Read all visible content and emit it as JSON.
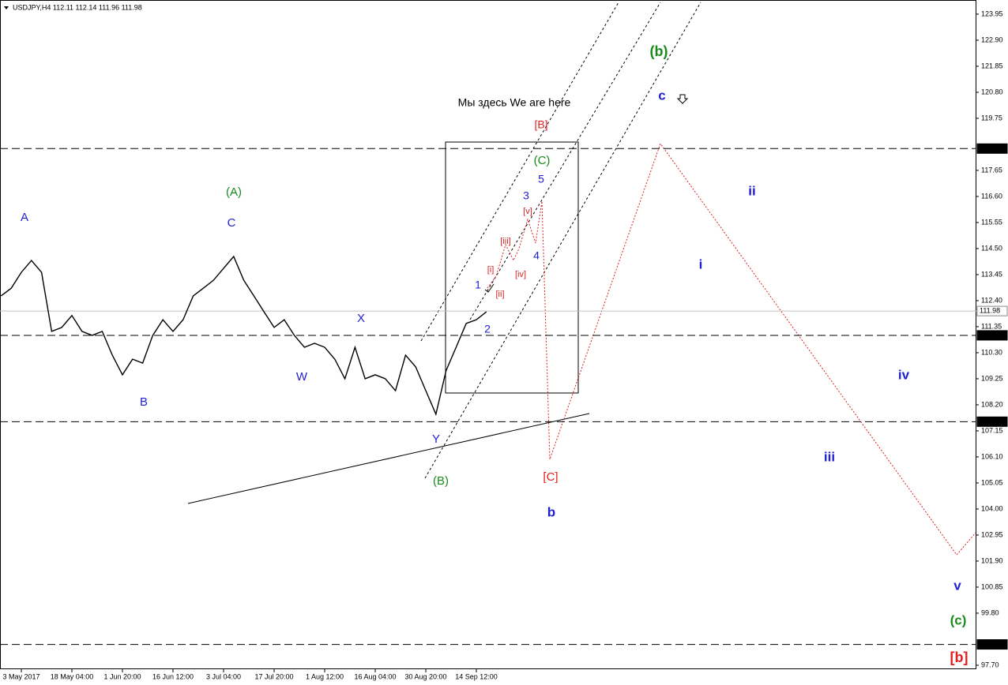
{
  "chart_data": {
    "type": "line",
    "title": "USDJPY,H4  112.11 112.14 111.96 111.98",
    "note": "Мы здесь We are here",
    "categories": [
      null,
      null,
      "3 May 2017",
      null,
      null,
      null,
      null,
      "18 May 04:00",
      null,
      null,
      null,
      null,
      "1 Jun 20:00",
      null,
      null,
      null,
      null,
      "16 Jun 12:00",
      null,
      null,
      null,
      null,
      "3 Jul 04:00",
      null,
      null,
      null,
      null,
      "17 Jul 20:00",
      null,
      null,
      null,
      null,
      "1 Aug 12:00",
      null,
      null,
      null,
      null,
      "16 Aug 04:00",
      null,
      null,
      null,
      null,
      "30 Aug 20:00",
      null,
      null,
      null,
      null,
      "14 Sep 12:00",
      null
    ],
    "series": [
      {
        "name": "USDJPY,H4",
        "color": "#000000",
        "values": [
          112.59,
          112.9,
          113.54,
          114.02,
          113.54,
          111.16,
          111.32,
          111.8,
          111.16,
          111.0,
          111.16,
          110.2,
          109.41,
          110.04,
          109.88,
          111.0,
          111.63,
          111.16,
          111.63,
          112.59,
          112.9,
          113.22,
          113.7,
          114.18,
          113.22,
          112.59,
          111.95,
          111.32,
          111.63,
          111.0,
          110.52,
          110.68,
          110.52,
          110.04,
          109.25,
          110.52,
          109.25,
          109.41,
          109.25,
          108.77,
          110.2,
          109.73,
          108.77,
          107.82,
          109.57,
          110.52,
          111.48,
          111.63,
          111.95
        ]
      }
    ],
    "ylim": [
      97.54,
      124.52
    ],
    "yticks": [
      123.95,
      {
        "value": 122.9,
        "label": "122.90"
      },
      121.85,
      {
        "value": 120.8,
        "label": "120.80"
      },
      119.75,
      117.65,
      {
        "value": 116.6,
        "label": "116.60"
      },
      115.55,
      {
        "value": 114.5,
        "label": "114.50"
      },
      113.45,
      {
        "value": 112.4,
        "label": "112.40"
      },
      111.35,
      {
        "value": 110.3,
        "label": "110.30"
      },
      109.25,
      {
        "value": 108.2,
        "label": "108.20"
      },
      107.15,
      {
        "value": 106.1,
        "label": "106.10"
      },
      105.05,
      {
        "value": 104.0,
        "label": "104.00"
      },
      102.95,
      {
        "value": 101.9,
        "label": "101.90"
      },
      100.85,
      {
        "value": 99.8,
        "label": "99.80"
      },
      {
        "value": 97.7,
        "label": "97.70"
      }
    ],
    "levels": [
      {
        "value": 118.53,
        "color": "#000000"
      },
      {
        "value": 111.98,
        "color": "#c0c0c0"
      },
      {
        "value": 111.0,
        "label": "111.00",
        "color": "#000000"
      },
      {
        "value": 107.52,
        "color": "#000000"
      },
      {
        "value": 98.54,
        "color": "#000000"
      }
    ],
    "annotations": [
      {
        "text": "A",
        "color": "#1f1fd0"
      },
      {
        "text": "B",
        "color": "#1f1fd0"
      },
      {
        "text": "C",
        "color": "#1f1fd0"
      },
      {
        "text": "(A)",
        "color": "#1a8a1a"
      },
      {
        "text": "X",
        "color": "#1f1fd0"
      },
      {
        "text": "W",
        "color": "#1f1fd0"
      },
      {
        "text": "Y",
        "color": "#1f1fd0"
      },
      {
        "text": "(B)",
        "color": "#1a8a1a"
      },
      {
        "text": "1",
        "color": "#1f1fd0"
      },
      {
        "text": "2",
        "color": "#1f1fd0"
      },
      {
        "text": "3",
        "color": "#1f1fd0"
      },
      {
        "text": "4",
        "color": "#1f1fd0"
      },
      {
        "text": "5",
        "color": "#1f1fd0"
      },
      {
        "text": "(C)",
        "color": "#1a8a1a"
      },
      {
        "text": "[B]",
        "color": "#e02020"
      },
      {
        "text": "[i]",
        "color": "#e02020"
      },
      {
        "text": "[ii]",
        "color": "#e02020"
      },
      {
        "text": "[iii]",
        "color": "#e02020"
      },
      {
        "text": "[iv]",
        "color": "#e02020"
      },
      {
        "text": "[v]",
        "color": "#e02020"
      },
      {
        "text": "[C]",
        "color": "#e02020"
      },
      {
        "text": "b",
        "color": "#1f1fd0"
      },
      {
        "text": "c",
        "color": "#1f1fd0"
      },
      {
        "text": "(b)",
        "color": "#1a8a1a"
      },
      {
        "text": "ii",
        "color": "#1f1fd0"
      },
      {
        "text": "i",
        "color": "#1f1fd0"
      },
      {
        "text": "iv",
        "color": "#1f1fd0"
      },
      {
        "text": "iii",
        "color": "#1f1fd0"
      },
      {
        "text": "v",
        "color": "#1f1fd0"
      },
      {
        "text": "(c)",
        "color": "#1a8a1a"
      },
      {
        "text": "[b]",
        "color": "#e02020"
      }
    ]
  }
}
